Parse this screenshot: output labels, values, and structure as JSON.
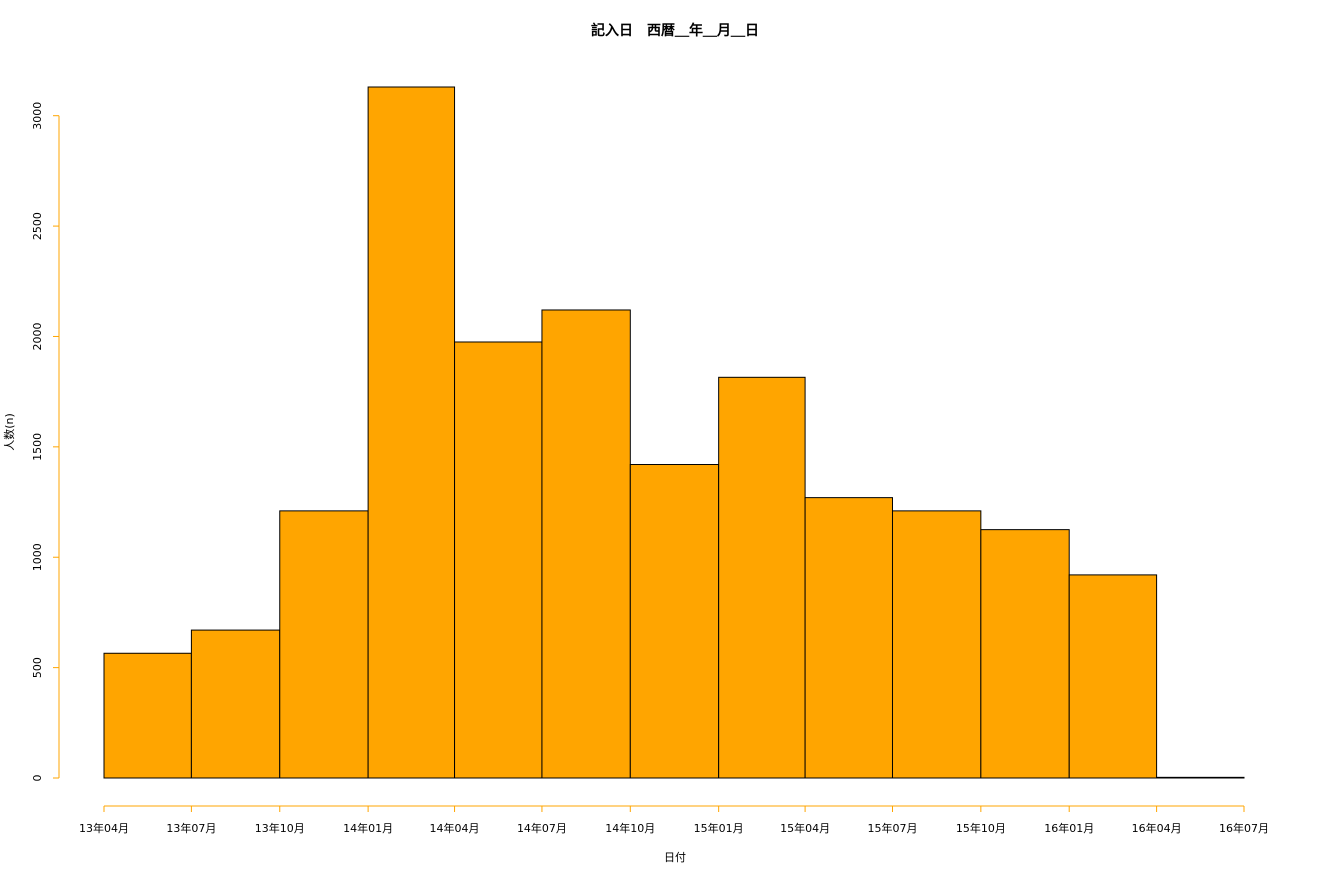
{
  "chart_data": {
    "type": "bar",
    "title": "記入日　西暦＿年＿月＿日",
    "xlabel": "日付",
    "ylabel": "人数(n)",
    "x_tick_labels": [
      "13年04月",
      "13年07月",
      "13年10月",
      "14年01月",
      "14年04月",
      "14年07月",
      "14年10月",
      "15年01月",
      "15年04月",
      "15年07月",
      "15年10月",
      "16年01月",
      "16年04月",
      "16年07月"
    ],
    "bin_edges": [
      "2013-04-01",
      "2013-07-01",
      "2013-10-01",
      "2014-01-01",
      "2014-04-01",
      "2014-07-01",
      "2014-10-01",
      "2015-01-01",
      "2015-04-01",
      "2015-07-01",
      "2015-10-01",
      "2016-01-01",
      "2016-04-01",
      "2016-07-01"
    ],
    "values": [
      565,
      670,
      1210,
      3130,
      1975,
      2120,
      1420,
      1815,
      1270,
      1210,
      1125,
      920,
      3
    ],
    "y_ticks": [
      0,
      500,
      1000,
      1500,
      2000,
      2500,
      3000
    ],
    "ylim": [
      0,
      3130
    ],
    "grid": false,
    "colors": {
      "bar_fill": "#FFA500",
      "bar_stroke": "#000000",
      "axis": "#FFA500"
    }
  }
}
